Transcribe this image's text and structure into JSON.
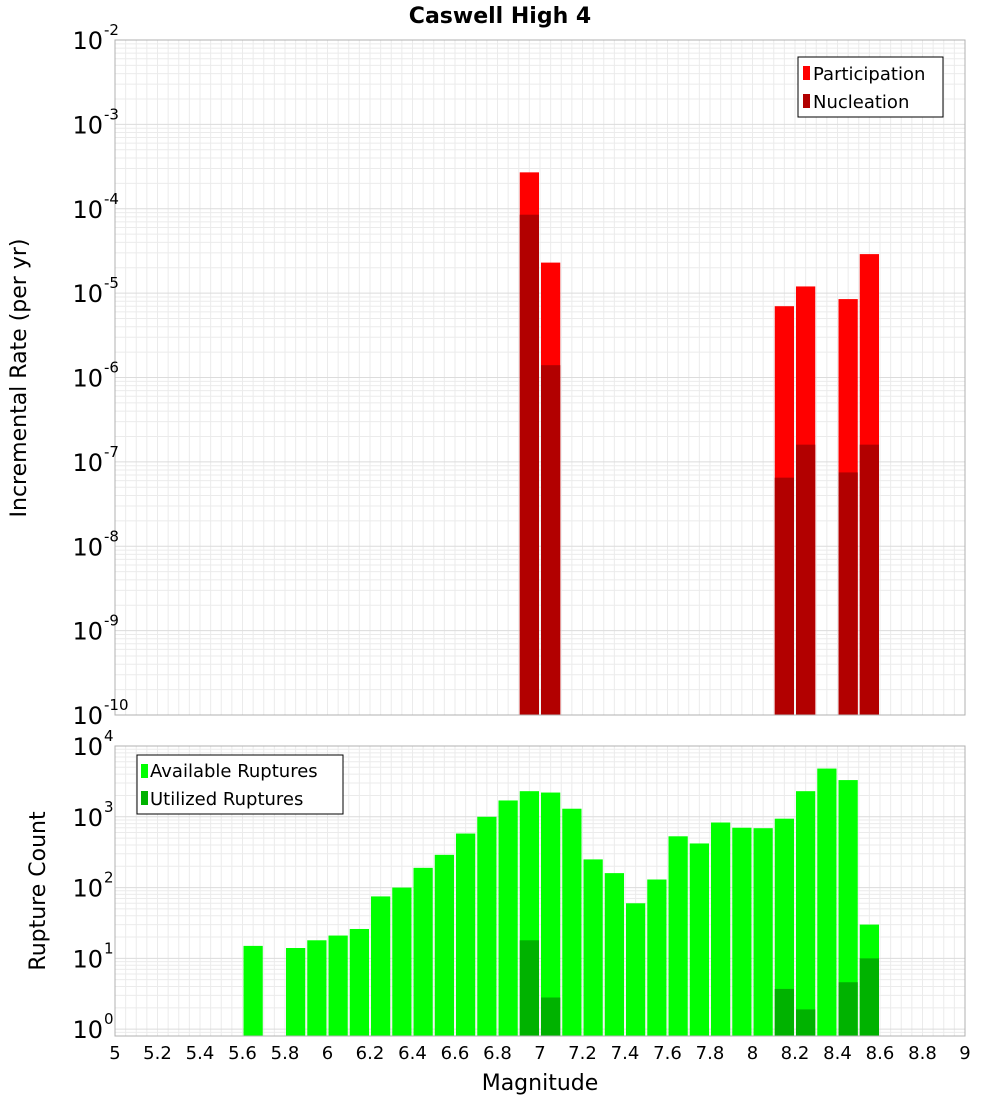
{
  "chart_data": [
    {
      "type": "bar",
      "title": "Caswell High 4",
      "xlabel": "",
      "ylabel": "Incremental Rate (per yr)",
      "yscale": "log",
      "xlim": [
        5,
        9
      ],
      "ylim": [
        1e-10,
        0.01
      ],
      "y_ticks": [
        {
          "base": "10",
          "exp": "-2"
        },
        {
          "base": "10",
          "exp": "-3"
        },
        {
          "base": "10",
          "exp": "-4"
        },
        {
          "base": "10",
          "exp": "-5"
        },
        {
          "base": "10",
          "exp": "-6"
        },
        {
          "base": "10",
          "exp": "-7"
        },
        {
          "base": "10",
          "exp": "-8"
        },
        {
          "base": "10",
          "exp": "-9"
        },
        {
          "base": "10",
          "exp": "-10"
        }
      ],
      "legend_position": "top-right",
      "series": [
        {
          "name": "Participation",
          "color": "#ff0000",
          "x": [
            6.95,
            7.05,
            8.15,
            8.25,
            8.45,
            8.55
          ],
          "values": [
            0.00027,
            2.3e-05,
            7e-06,
            1.2e-05,
            8.5e-06,
            2.9e-05
          ]
        },
        {
          "name": "Nucleation",
          "color": "#b20000",
          "x": [
            6.95,
            7.05,
            8.15,
            8.25,
            8.45,
            8.55
          ],
          "values": [
            8.5e-05,
            1.4e-06,
            6.5e-08,
            1.6e-07,
            7.5e-08,
            1.6e-07
          ]
        }
      ]
    },
    {
      "type": "bar",
      "title": "",
      "xlabel": "Magnitude",
      "ylabel": "Rupture Count",
      "yscale": "log",
      "xlim": [
        5,
        9
      ],
      "ylim": [
        0.8,
        10000
      ],
      "x_ticks": [
        "5",
        "5.2",
        "5.4",
        "5.6",
        "5.8",
        "6",
        "6.2",
        "6.4",
        "6.6",
        "6.8",
        "7",
        "7.2",
        "7.4",
        "7.6",
        "7.8",
        "8",
        "8.2",
        "8.4",
        "8.6",
        "8.8",
        "9"
      ],
      "y_ticks": [
        {
          "base": "10",
          "exp": "4"
        },
        {
          "base": "10",
          "exp": "3"
        },
        {
          "base": "10",
          "exp": "2"
        },
        {
          "base": "10",
          "exp": "1"
        },
        {
          "base": "10",
          "exp": "0"
        }
      ],
      "legend_position": "top-left",
      "series": [
        {
          "name": "Available Ruptures",
          "color": "#00ff00",
          "x": [
            5.65,
            5.85,
            5.95,
            6.05,
            6.15,
            6.25,
            6.35,
            6.45,
            6.55,
            6.65,
            6.75,
            6.85,
            6.95,
            7.05,
            7.15,
            7.25,
            7.35,
            7.45,
            7.55,
            7.65,
            7.75,
            7.85,
            7.95,
            8.05,
            8.15,
            8.25,
            8.35,
            8.45,
            8.55
          ],
          "values": [
            15,
            14,
            18,
            21,
            26,
            75,
            100,
            190,
            290,
            580,
            1000,
            1700,
            2300,
            2200,
            1300,
            250,
            160,
            60,
            130,
            530,
            420,
            830,
            700,
            690,
            940,
            2300,
            4800,
            3300,
            30
          ]
        },
        {
          "name": "Utilized Ruptures",
          "color": "#00b200",
          "x": [
            6.95,
            7.05,
            8.15,
            8.25,
            8.45,
            8.55
          ],
          "values": [
            18,
            2.8,
            3.7,
            1.9,
            4.6,
            10
          ]
        }
      ]
    }
  ]
}
